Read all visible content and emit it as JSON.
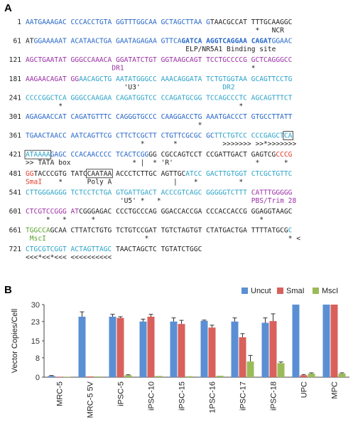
{
  "panel_a": {
    "label": "A",
    "rows": [
      {
        "num": 1,
        "segments": [
          {
            "text": "AATGAAAGAC CCCACCTGTA GGTTTGGCAA GCTAGCTTAA G",
            "color": "#2566c8"
          },
          {
            "text": "TAACGCCAT TTTGCAAGGC",
            "color": "#222222"
          }
        ],
        "notes": [
          {
            "text": "*",
            "color": "#222222"
          },
          {
            "text": "NCR",
            "color": "#222222"
          }
        ]
      },
      {
        "num": 61,
        "segments": [
          {
            "text": "AT",
            "color": "#222222"
          },
          {
            "text": "GGAAAAAT ACATAACTGA GAATAGAGAA GTTCA",
            "color": "#2566c8"
          },
          {
            "text": "GATCA AGGTCAGGAA CAGAT",
            "color": "#2566c8",
            "bold": true
          },
          {
            "text": "GGAAC",
            "color": "#2566c8"
          }
        ],
        "notes": [
          {
            "text": "ELP/NR5A1 Binding site",
            "color": "#222222"
          }
        ]
      },
      {
        "num": 121,
        "segments": [
          {
            "text": "AGCTGAATAT GGGCCAAACA GGATATCTGT GGTAAGCAGT TCCTGCCCCG GCTCAGGGCC",
            "color": "#9b2fa6"
          }
        ],
        "notes": [
          {
            "text": "DR1",
            "color": "#9b2fa6"
          },
          {
            "text": "*",
            "color": "#222222"
          }
        ]
      },
      {
        "num": 181,
        "segments": [
          {
            "text": "AAGAACAGAT GG",
            "color": "#9b2fa6"
          },
          {
            "text": "AACAGCTG AATATGGGCC AAACAGGATA TCTGTGGTAA GCAGTTCCTG",
            "color": "#2aa3c9"
          }
        ],
        "notes": [
          {
            "text": "'U3'",
            "color": "#222222"
          },
          {
            "text": "DR2",
            "color": "#2aa3c9"
          }
        ]
      },
      {
        "num": 241,
        "segments": [
          {
            "text": "CCCCGGCTCA GGGCCAAGAA CAGATGGTCC CCAGATGCGG TCCAGCCCTC AGCAGTTTCT",
            "color": "#2aa3c9"
          }
        ],
        "notes": [
          {
            "text": "*",
            "color": "#222222"
          },
          {
            "text": "*",
            "color": "#222222"
          }
        ]
      },
      {
        "num": 301,
        "segments": [
          {
            "text": "AGAGAACCAT CAGATGTTTC CAGGGTGCCC CAAGGACCTG AAATGACCCT GTGCCTTATT",
            "color": "#2566c8"
          }
        ],
        "notes": [
          {
            "text": "*",
            "color": "#222222"
          }
        ]
      },
      {
        "num": 361,
        "segments": [
          {
            "text": "TGAACTAACC AATCAGTTCG CTTCTCGCTT CTGTTCGCGC GC",
            "color": "#2566c8"
          },
          {
            "text": "TTCTGTCC CCCGAGCT",
            "color": "#2aa3c9"
          },
          {
            "text": "CA",
            "color": "#2aa3c9",
            "boxed": true
          }
        ],
        "notes": [
          {
            "text": "*",
            "color": "#222222"
          },
          {
            "text": "*",
            "color": "#222222"
          },
          {
            "text": ">>>>>>> >>*>>>>>>>",
            "color": "#222222"
          }
        ]
      },
      {
        "num": 421,
        "segments": [
          {
            "text": "ATAAAA",
            "color": "#2aa3c9",
            "boxed": true
          },
          {
            "text": "GAGC CCACAACCCC TCACTCGG",
            "color": "#2566c8"
          },
          {
            "text": "GG CGCCAGTCCT CCGATTGACT GAGTCG",
            "color": "#222222"
          },
          {
            "text": "CCCG",
            "color": "#e03a2a"
          }
        ],
        "notes": [
          {
            "text": ">> TATA box",
            "color": "#222222"
          },
          {
            "text": "*",
            "color": "#222222"
          },
          {
            "text": "|",
            "color": "#222222"
          },
          {
            "text": "* 'R'",
            "color": "#222222"
          },
          {
            "text": "*",
            "color": "#222222"
          },
          {
            "text": "*",
            "color": "#222222"
          }
        ]
      },
      {
        "num": 481,
        "segments": [
          {
            "text": "GG",
            "color": "#e03a2a"
          },
          {
            "text": "TACCCGTG TATC",
            "color": "#222222"
          },
          {
            "text": "CAATAA",
            "color": "#222222",
            "boxed": true
          },
          {
            "text": " ACCCTCTTGC AGTTGC",
            "color": "#222222"
          },
          {
            "text": "ATCC GACTTGTGGT CTCGCTGTTC",
            "color": "#2aa3c9"
          }
        ],
        "notes": [
          {
            "text": "SmaI",
            "color": "#e03a2a"
          },
          {
            "text": "*",
            "color": "#222222"
          },
          {
            "text": "Poly A",
            "color": "#222222"
          },
          {
            "text": "|",
            "color": "#222222"
          },
          {
            "text": "*",
            "color": "#222222"
          },
          {
            "text": "*",
            "color": "#222222"
          }
        ]
      },
      {
        "num": 541,
        "segments": [
          {
            "text": "CTTGGGAGGG TCTCCTCTGA GTGATTGACT ACCCGTCAGC GGGGGTCTTT ",
            "color": "#2aa3c9"
          },
          {
            "text": "CATTTGGGGG",
            "color": "#9b2fa6"
          }
        ],
        "notes": [
          {
            "text": "'U5'",
            "color": "#222222"
          },
          {
            "text": "*",
            "color": "#222222"
          },
          {
            "text": "*",
            "color": "#222222"
          },
          {
            "text": "PBS/Trim 28",
            "color": "#9b2fa6"
          }
        ]
      },
      {
        "num": 601,
        "segments": [
          {
            "text": "CTCGTCCGGG AT",
            "color": "#9b2fa6"
          },
          {
            "text": "CGGGAGAC CCCTGCCCAG GGACCACCGA CCCACCACCG GGAGGTAAGC",
            "color": "#222222"
          }
        ],
        "notes": [
          {
            "text": "*",
            "color": "#222222"
          },
          {
            "text": "*",
            "color": "#222222"
          },
          {
            "text": "*",
            "color": "#222222"
          },
          {
            "text": "*",
            "color": "#222222"
          }
        ]
      },
      {
        "num": 661,
        "segments": [
          {
            "text": "TGGCCA",
            "color": "#5aa02c"
          },
          {
            "text": "GCAA CTTATCTGTG TCTGTCCGAT TGTCTAGTGT CTATGACTGA TTTTATGCG",
            "color": "#222222"
          },
          {
            "text": "C",
            "color": "#2aa3c9"
          }
        ],
        "notes": [
          {
            "text": "MscI",
            "color": "#5aa02c"
          },
          {
            "text": "*",
            "color": "#222222"
          },
          {
            "text": "*",
            "color": "#222222"
          },
          {
            "text": "<",
            "color": "#222222"
          }
        ]
      },
      {
        "num": 721,
        "segments": [
          {
            "text": "CTGCGTCGGT ACTAGTTAGC",
            "color": "#2aa3c9"
          },
          {
            "text": " TAACTAGCTC TGTATCTGGC",
            "color": "#222222"
          }
        ],
        "notes": [
          {
            "text": "<<<*<<*<<< <<<<<<<<<<",
            "color": "#222222"
          }
        ]
      }
    ]
  },
  "chart_data": {
    "type": "bar",
    "label": "B",
    "y_label": "Vector Copies/Cell",
    "categories": [
      "MRC-5",
      "MRC-5 5V",
      "iPSC-5",
      "iPSC-10",
      "iPSC-15",
      "1PSC-16",
      "iPSC-17",
      "iPSC-18",
      "UPC",
      "MPC"
    ],
    "series": [
      {
        "name": "Uncut",
        "color": "#5b8fd4",
        "values": [
          0.5,
          25,
          25,
          23,
          23,
          23.3,
          23,
          22.5,
          30,
          30
        ],
        "errors": [
          0.2,
          2,
          1,
          1,
          1.5,
          0.3,
          1.5,
          2,
          0,
          0
        ]
      },
      {
        "name": "SmaI",
        "color": "#d9605b",
        "values": [
          0.2,
          0.3,
          24.5,
          25,
          22,
          20.5,
          16.5,
          23.2,
          0.8,
          30
        ],
        "errors": [
          0,
          0,
          0.5,
          1,
          1.5,
          1,
          1.5,
          3,
          0.3,
          0
        ]
      },
      {
        "name": "MscI",
        "color": "#9bbb59",
        "values": [
          0.2,
          0.3,
          0.8,
          0.5,
          0.4,
          0.6,
          6.5,
          5.8,
          1.5,
          1.5
        ],
        "errors": [
          0,
          0,
          0.2,
          0,
          0,
          0,
          2.5,
          0.5,
          0.3,
          0.3
        ]
      }
    ],
    "ylim": [
      0,
      30
    ],
    "yticks": [
      0,
      8,
      15,
      23,
      30
    ],
    "grid": false,
    "legend": "top-right"
  }
}
